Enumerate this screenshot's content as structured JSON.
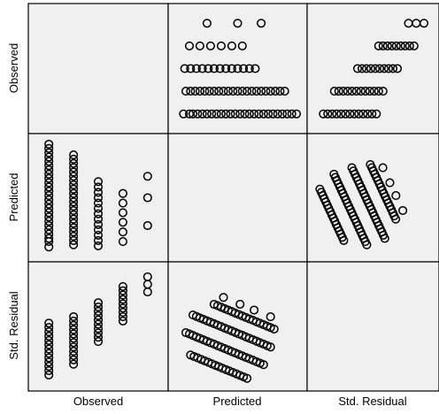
{
  "chart_data": {
    "type": "scatter",
    "subtype": "scatterplot-matrix",
    "variables": [
      "Observed",
      "Predicted",
      "Std. Residual"
    ],
    "background": "#f0f0f0",
    "marker": "open-circle",
    "marker_color": "#000000",
    "axis_ranges": {
      "observed": [
        0.6,
        5.4
      ],
      "predicted": [
        0.0,
        1.0
      ],
      "residual": [
        0.0,
        1.0
      ]
    },
    "pairs": {
      "observed_vs_predicted": {
        "1": [
          0.04,
          0.09,
          0.12,
          0.16,
          0.2,
          0.24,
          0.28,
          0.32,
          0.36,
          0.4,
          0.44,
          0.48,
          0.52,
          0.56,
          0.6,
          0.64,
          0.68,
          0.72,
          0.76,
          0.8,
          0.84,
          0.88,
          0.92,
          0.96,
          1.0
        ],
        "2": [
          0.06,
          0.1,
          0.14,
          0.18,
          0.22,
          0.26,
          0.3,
          0.34,
          0.38,
          0.42,
          0.46,
          0.5,
          0.54,
          0.58,
          0.62,
          0.66,
          0.7,
          0.74,
          0.78,
          0.82,
          0.86,
          0.9
        ],
        "3": [
          0.05,
          0.1,
          0.15,
          0.2,
          0.25,
          0.3,
          0.35,
          0.4,
          0.45,
          0.5,
          0.55,
          0.6,
          0.65
        ],
        "4": [
          0.09,
          0.18,
          0.27,
          0.36,
          0.45,
          0.54
        ],
        "5": [
          0.24,
          0.5,
          0.7
        ]
      },
      "observed_vs_residual": {
        "1": [
          0.05,
          0.09,
          0.13,
          0.17,
          0.21,
          0.25,
          0.29,
          0.33,
          0.37,
          0.41,
          0.45,
          0.49,
          0.53
        ],
        "2": [
          0.15,
          0.19,
          0.23,
          0.27,
          0.31,
          0.35,
          0.39,
          0.43,
          0.47,
          0.51,
          0.55,
          0.59
        ],
        "3": [
          0.36,
          0.4,
          0.44,
          0.48,
          0.52,
          0.56,
          0.6,
          0.64,
          0.68,
          0.72
        ],
        "4": [
          0.55,
          0.59,
          0.63,
          0.67,
          0.71,
          0.75,
          0.79,
          0.83,
          0.87
        ],
        "5": [
          0.82,
          0.89,
          0.96
        ]
      },
      "predicted_vs_residual": [
        {
          "xs": [
            0.1,
            0.13,
            0.16,
            0.19,
            0.22,
            0.25,
            0.28,
            0.31,
            0.34,
            0.37,
            0.4,
            0.43,
            0.46,
            0.49,
            0.52,
            0.55,
            0.58
          ],
          "start": 0.28,
          "slope": -0.45
        },
        {
          "xs": [
            0.06,
            0.09,
            0.12,
            0.15,
            0.18,
            0.21,
            0.24,
            0.27,
            0.3,
            0.33,
            0.36,
            0.39,
            0.42,
            0.45,
            0.48,
            0.51,
            0.54,
            0.57,
            0.6,
            0.63,
            0.66,
            0.69,
            0.72
          ],
          "start": 0.47,
          "slope": -0.45
        },
        {
          "xs": [
            0.12,
            0.15,
            0.18,
            0.21,
            0.24,
            0.27,
            0.3,
            0.33,
            0.36,
            0.39,
            0.42,
            0.45,
            0.48,
            0.51,
            0.54,
            0.57,
            0.6,
            0.63,
            0.66,
            0.69,
            0.72,
            0.75,
            0.78
          ],
          "start": 0.66,
          "slope": -0.45
        },
        {
          "xs": [
            0.3,
            0.33,
            0.36,
            0.39,
            0.42,
            0.45,
            0.48,
            0.51,
            0.54,
            0.57,
            0.6,
            0.63,
            0.66,
            0.69,
            0.72,
            0.75,
            0.78,
            0.81
          ],
          "start": 0.84,
          "slope": -0.45
        },
        {
          "xs": [
            0.38,
            0.52,
            0.64,
            0.78
          ],
          "start": 0.94,
          "slope": -0.45
        }
      ]
    },
    "labels": {
      "row_labels": [
        "Observed",
        "Predicted",
        "Std. Residual"
      ],
      "col_labels": [
        "Observed",
        "Predicted",
        "Std. Residual"
      ]
    }
  }
}
